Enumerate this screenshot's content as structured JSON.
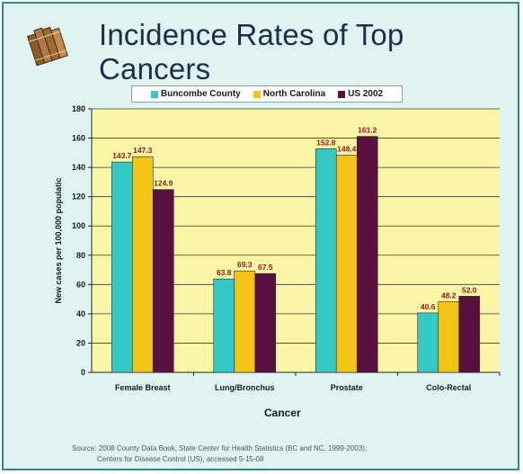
{
  "title": "Incidence Rates of Top Cancers",
  "source": {
    "line1": "Source: 2008 County Data Book, State Center for Health Statistics (BC and NC, 1999-2003);",
    "line2": "Centers for Disease Control (US), accessed 5-15-08"
  },
  "icons": {
    "logo": "books-icon"
  },
  "colors": {
    "background": "#def3f2",
    "plot_area": "#fbf6a6",
    "buncombe": "#35c9c6",
    "north_carolina": "#f3c315",
    "us": "#5b0f3e",
    "value_label": "#8b1a1a"
  },
  "chart_data": {
    "type": "bar",
    "title": "Incidence Rates of Top Cancers",
    "xlabel": "Cancer",
    "ylabel": "New cases per 100,000 populatic",
    "ylim": [
      0,
      180
    ],
    "yticks": [
      0,
      20,
      40,
      60,
      80,
      100,
      120,
      140,
      160,
      180
    ],
    "grid": true,
    "legend_position": "top",
    "categories": [
      "Female Breast",
      "Lung/Bronchus",
      "Prostate",
      "Colo-Rectal"
    ],
    "series": [
      {
        "name": "Buncombe County",
        "color": "#35c9c6",
        "values": [
          143.7,
          63.8,
          152.8,
          40.6
        ],
        "labels": [
          "143.7",
          "63.8",
          "152.8",
          "40.6"
        ]
      },
      {
        "name": "North Carolina",
        "color": "#f3c315",
        "values": [
          147.3,
          69.3,
          148.4,
          48.2
        ],
        "labels": [
          "147.3",
          "69.3",
          "148.4",
          "48.2"
        ]
      },
      {
        "name": "US 2002",
        "color": "#5b0f3e",
        "values": [
          124.9,
          67.5,
          161.2,
          52.0
        ],
        "labels": [
          "124.9",
          "67.5",
          "161.2",
          "52.0"
        ]
      }
    ]
  }
}
